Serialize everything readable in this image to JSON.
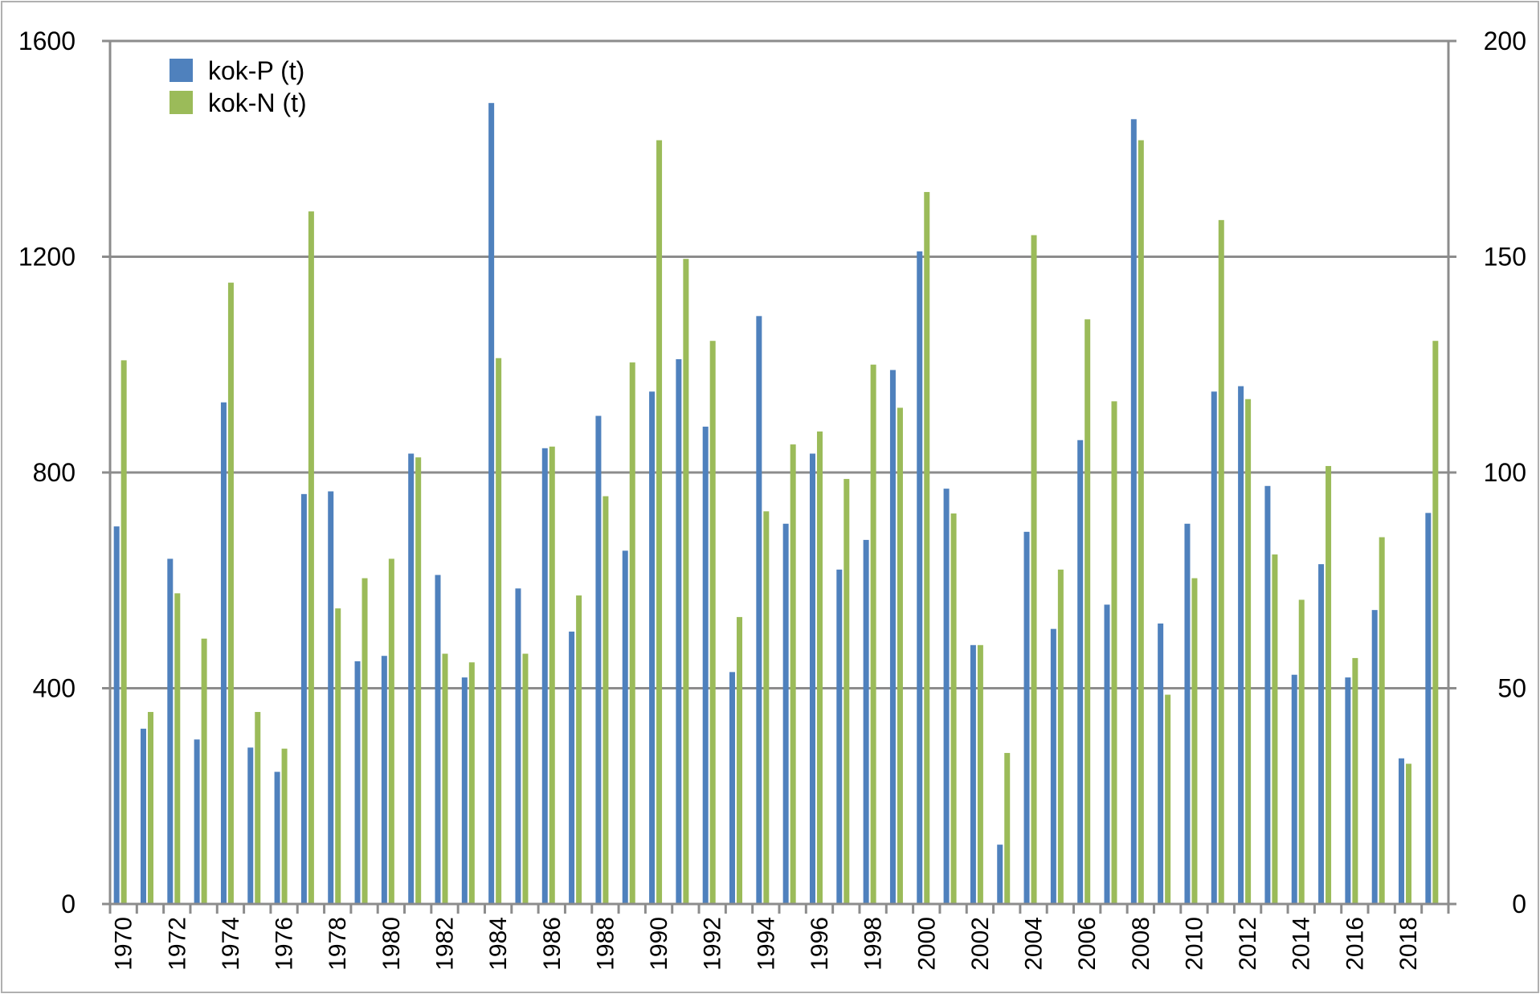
{
  "chart_data": {
    "type": "bar",
    "title": "",
    "xlabel": "",
    "ylabel_left": "",
    "ylabel_right": "",
    "grid": true,
    "legend_position": "top-left",
    "x": [
      1970,
      1971,
      1972,
      1973,
      1974,
      1975,
      1976,
      1977,
      1978,
      1979,
      1980,
      1981,
      1982,
      1983,
      1984,
      1985,
      1986,
      1987,
      1988,
      1989,
      1990,
      1991,
      1992,
      1993,
      1994,
      1995,
      1996,
      1997,
      1998,
      1999,
      2000,
      2001,
      2002,
      2003,
      2004,
      2005,
      2006,
      2007,
      2008,
      2009,
      2010,
      2011,
      2012,
      2013,
      2014,
      2015,
      2016,
      2017,
      2018,
      2019
    ],
    "x_tick_labels": [
      "1970",
      "1972",
      "1974",
      "1976",
      "1978",
      "1980",
      "1982",
      "1984",
      "1986",
      "1988",
      "1990",
      "1992",
      "1994",
      "1996",
      "1998",
      "2000",
      "2002",
      "2004",
      "2006",
      "2008",
      "2010",
      "2012",
      "2014",
      "2016",
      "2018"
    ],
    "left_axis": {
      "ylim": [
        0,
        1600
      ],
      "ticks": [
        "0",
        "400",
        "800",
        "1200",
        "1600"
      ]
    },
    "right_axis": {
      "ylim": [
        0,
        200
      ],
      "ticks": [
        "0",
        "50",
        "100",
        "150",
        "200"
      ]
    },
    "series": [
      {
        "name": "kok-P (t)",
        "axis": "left",
        "color": "#4f81bd",
        "values": [
          700,
          325,
          640,
          305,
          930,
          290,
          245,
          760,
          765,
          450,
          460,
          835,
          610,
          420,
          1485,
          585,
          845,
          505,
          905,
          655,
          950,
          1010,
          885,
          430,
          1090,
          705,
          835,
          620,
          675,
          990,
          1210,
          770,
          480,
          110,
          690,
          510,
          860,
          555,
          1455,
          520,
          705,
          950,
          960,
          775,
          425,
          630,
          420,
          545,
          270,
          725
        ]
      },
      {
        "name": "kok-N (t)",
        "axis": "right",
        "color": "#9bbb59",
        "values": [
          126,
          44.5,
          72,
          61.5,
          144,
          44.5,
          36,
          160.5,
          68.5,
          75.5,
          80,
          103.5,
          58,
          56,
          126.5,
          58,
          106,
          71.5,
          94.5,
          125.5,
          177,
          149.5,
          130.5,
          66.5,
          91,
          106.5,
          109.5,
          98.5,
          125,
          115,
          165,
          90.5,
          60,
          35,
          155,
          77.5,
          135.5,
          116.5,
          177,
          48.5,
          75.5,
          158.5,
          117,
          81,
          70.5,
          101.5,
          57,
          85,
          32.5,
          130.5
        ]
      }
    ]
  }
}
